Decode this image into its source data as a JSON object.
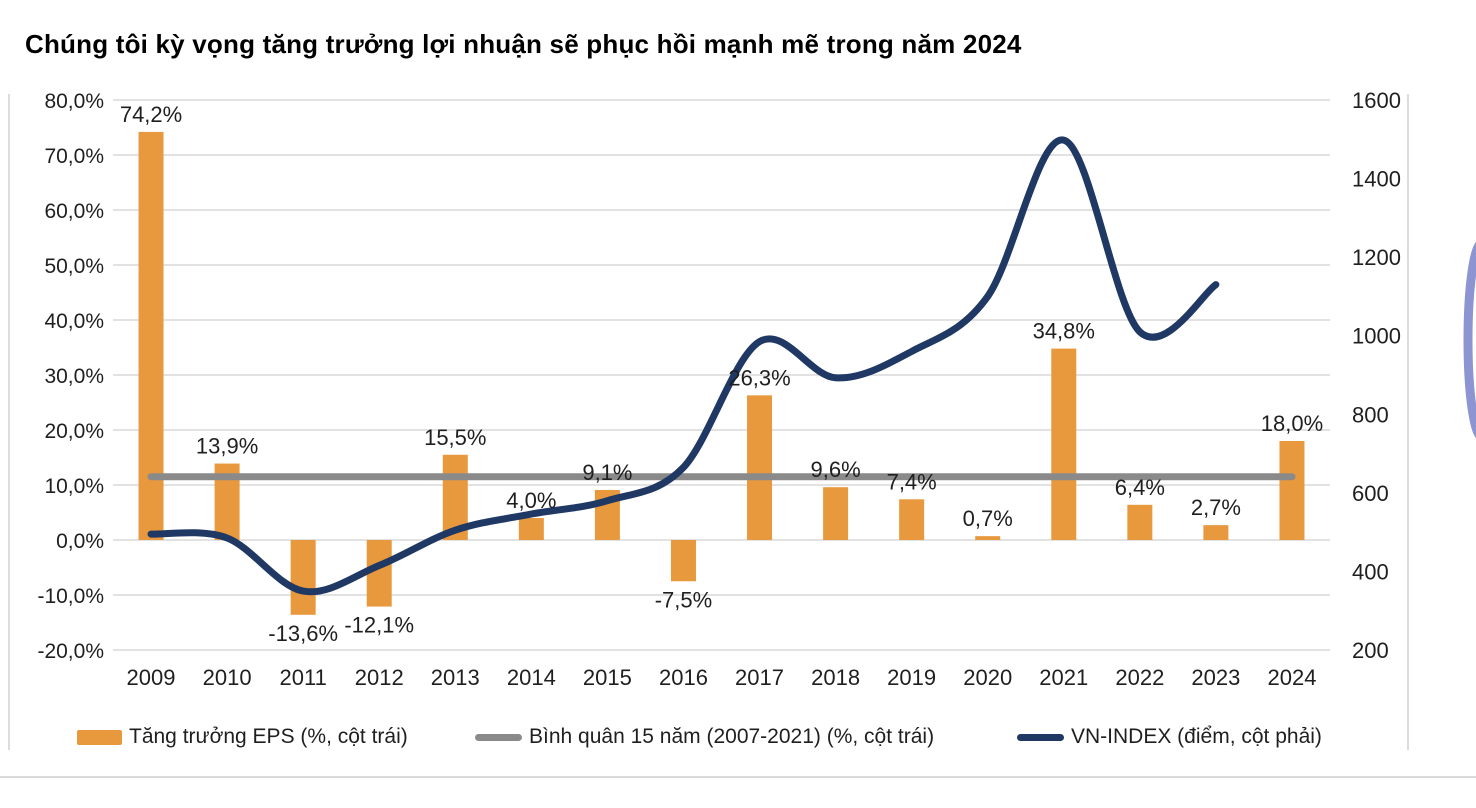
{
  "page": {
    "title": "Chúng tôi kỳ vọng tăng trưởng lợi nhuận sẽ phục hồi mạnh mẽ trong năm 2024"
  },
  "colors": {
    "bar": "#E8993D",
    "avg_line": "#8A8A8A",
    "index_line": "#1F3864",
    "grid": "#D9D9D9",
    "frame": "#DCDCDC",
    "text": "#1F1F1F",
    "decor_crescent": "#8C95D1"
  },
  "legend": {
    "items": [
      {
        "label": "Tăng trưởng EPS (%, cột trái)"
      },
      {
        "label": "Bình quân 15 năm (2007-2021) (%, cột trái)"
      },
      {
        "label": "VN-INDEX (điểm, cột phải)"
      }
    ]
  },
  "chart_data": {
    "type": "combo-bar-line",
    "categories": [
      "2009",
      "2010",
      "2011",
      "2012",
      "2013",
      "2014",
      "2015",
      "2016",
      "2017",
      "2018",
      "2019",
      "2020",
      "2021",
      "2022",
      "2023",
      "2024"
    ],
    "left_axis": {
      "ticks": [
        "80,0%",
        "70,0%",
        "60,0%",
        "50,0%",
        "40,0%",
        "30,0%",
        "20,0%",
        "10,0%",
        "0,0%",
        "-10,0%",
        "-20,0%"
      ],
      "min": -20,
      "max": 80,
      "grid": true
    },
    "right_axis": {
      "ticks": [
        "1600",
        "1400",
        "1200",
        "1000",
        "800",
        "600",
        "400",
        "200"
      ],
      "min": 200,
      "max": 1600
    },
    "series": [
      {
        "name": "Tăng trưởng EPS (%, cột trái)",
        "type": "bar",
        "axis": "left",
        "values": [
          74.2,
          13.9,
          -13.6,
          -12.1,
          15.5,
          4.0,
          9.1,
          -7.5,
          26.3,
          9.6,
          7.4,
          0.7,
          34.8,
          6.4,
          2.7,
          18.0
        ],
        "labels": [
          "74,2%",
          "13,9%",
          "-13,6%",
          "-12,1%",
          "15,5%",
          "4,0%",
          "9,1%",
          "-7,5%",
          "26,3%",
          "9,6%",
          "7,4%",
          "0,7%",
          "34,8%",
          "6,4%",
          "2,7%",
          "18,0%"
        ]
      },
      {
        "name": "Bình quân 15 năm (2007-2021) (%, cột trái)",
        "type": "avg-line",
        "axis": "left",
        "value": 11.5
      },
      {
        "name": "VN-INDEX (điểm, cột phải)",
        "type": "line",
        "axis": "right",
        "years": [
          "2009",
          "2010",
          "2011",
          "2012",
          "2013",
          "2014",
          "2015",
          "2016",
          "2017",
          "2018",
          "2019",
          "2020",
          "2021",
          "2022",
          "2023"
        ],
        "values": [
          495,
          485,
          350,
          415,
          505,
          546,
          580,
          665,
          985,
          893,
          960,
          1100,
          1498,
          1010,
          1130
        ]
      }
    ],
    "legend_position": "bottom"
  }
}
